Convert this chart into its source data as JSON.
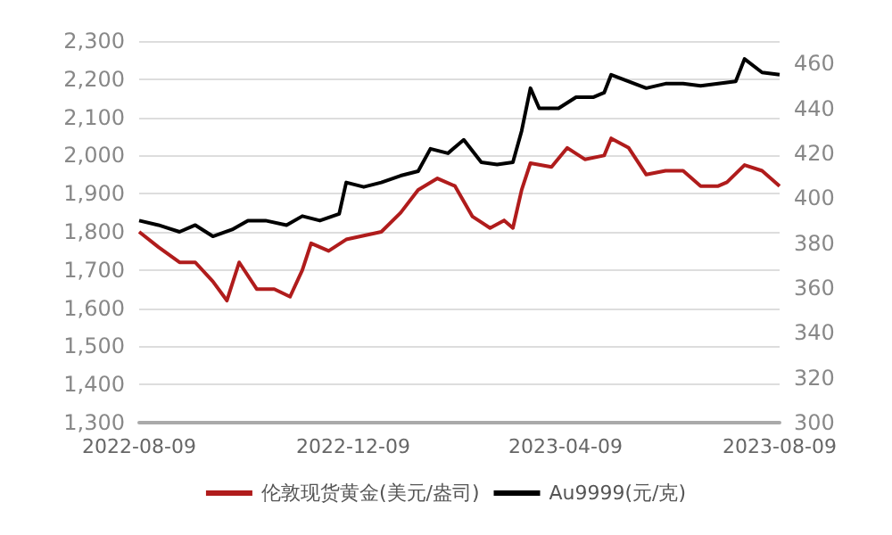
{
  "chart_data": {
    "type": "line",
    "xlim": [
      "2022-08-09",
      "2023-08-09"
    ],
    "xticks": [
      "2022-08-09",
      "2022-12-09",
      "2023-04-09",
      "2023-08-09"
    ],
    "ylim": [
      1300,
      2300
    ],
    "yticks": [
      {
        "value": 1300,
        "label": "1,300"
      },
      {
        "value": 1400,
        "label": "1,400"
      },
      {
        "value": 1500,
        "label": "1,500"
      },
      {
        "value": 1600,
        "label": "1,600"
      },
      {
        "value": 1700,
        "label": "1,700"
      },
      {
        "value": 1800,
        "label": "1,800"
      },
      {
        "value": 1900,
        "label": "1,900"
      },
      {
        "value": 2000,
        "label": "2,000"
      },
      {
        "value": 2100,
        "label": "2,100"
      },
      {
        "value": 2200,
        "label": "2,200"
      },
      {
        "value": 2300,
        "label": "2,300"
      }
    ],
    "y2lim": [
      300,
      470
    ],
    "y2ticks": [
      300,
      320,
      340,
      360,
      380,
      400,
      420,
      440,
      460
    ],
    "grid": "y",
    "legend": "bottom",
    "line_style": "solid",
    "marker": "none",
    "series": [
      {
        "name": "伦敦现货黄金(美元/盎司)",
        "color": "#b01c1c",
        "x": [
          "2022-08-09",
          "2022-08-20",
          "2022-09-01",
          "2022-09-10",
          "2022-09-20",
          "2022-09-28",
          "2022-10-05",
          "2022-10-15",
          "2022-10-25",
          "2022-11-03",
          "2022-11-10",
          "2022-11-15",
          "2022-11-25",
          "2022-12-05",
          "2022-12-15",
          "2022-12-25",
          "2023-01-05",
          "2023-01-15",
          "2023-01-26",
          "2023-02-05",
          "2023-02-15",
          "2023-02-25",
          "2023-03-05",
          "2023-03-10",
          "2023-03-15",
          "2023-03-20",
          "2023-04-01",
          "2023-04-10",
          "2023-04-20",
          "2023-05-01",
          "2023-05-05",
          "2023-05-15",
          "2023-05-25",
          "2023-06-05",
          "2023-06-15",
          "2023-06-25",
          "2023-07-05",
          "2023-07-10",
          "2023-07-20",
          "2023-07-30",
          "2023-08-09"
        ],
        "values": [
          1800,
          1760,
          1720,
          1720,
          1670,
          1620,
          1720,
          1650,
          1650,
          1630,
          1700,
          1770,
          1750,
          1780,
          1790,
          1800,
          1850,
          1910,
          1940,
          1920,
          1840,
          1810,
          1830,
          1810,
          1910,
          1980,
          1970,
          2020,
          1990,
          2000,
          2045,
          2020,
          1950,
          1960,
          1960,
          1920,
          1920,
          1930,
          1975,
          1960,
          1920
        ]
      },
      {
        "name": "Au9999(元/克)",
        "color": "#000000",
        "axis": "y2",
        "x": [
          "2022-08-09",
          "2022-08-20",
          "2022-09-01",
          "2022-09-10",
          "2022-09-20",
          "2022-10-01",
          "2022-10-10",
          "2022-10-20",
          "2022-11-01",
          "2022-11-10",
          "2022-11-20",
          "2022-12-01",
          "2022-12-05",
          "2022-12-15",
          "2022-12-25",
          "2023-01-05",
          "2023-01-15",
          "2023-01-22",
          "2023-02-01",
          "2023-02-10",
          "2023-02-20",
          "2023-03-01",
          "2023-03-10",
          "2023-03-15",
          "2023-03-20",
          "2023-03-25",
          "2023-04-05",
          "2023-04-15",
          "2023-04-25",
          "2023-05-01",
          "2023-05-05",
          "2023-05-15",
          "2023-05-25",
          "2023-06-05",
          "2023-06-15",
          "2023-06-25",
          "2023-07-05",
          "2023-07-15",
          "2023-07-20",
          "2023-07-30",
          "2023-08-09"
        ],
        "values": [
          390,
          388,
          385,
          388,
          383,
          386,
          390,
          390,
          388,
          392,
          390,
          393,
          407,
          405,
          407,
          410,
          412,
          422,
          420,
          426,
          416,
          415,
          416,
          430,
          449,
          440,
          440,
          445,
          445,
          447,
          455,
          452,
          449,
          451,
          451,
          450,
          451,
          452,
          462,
          456,
          455
        ]
      }
    ]
  }
}
